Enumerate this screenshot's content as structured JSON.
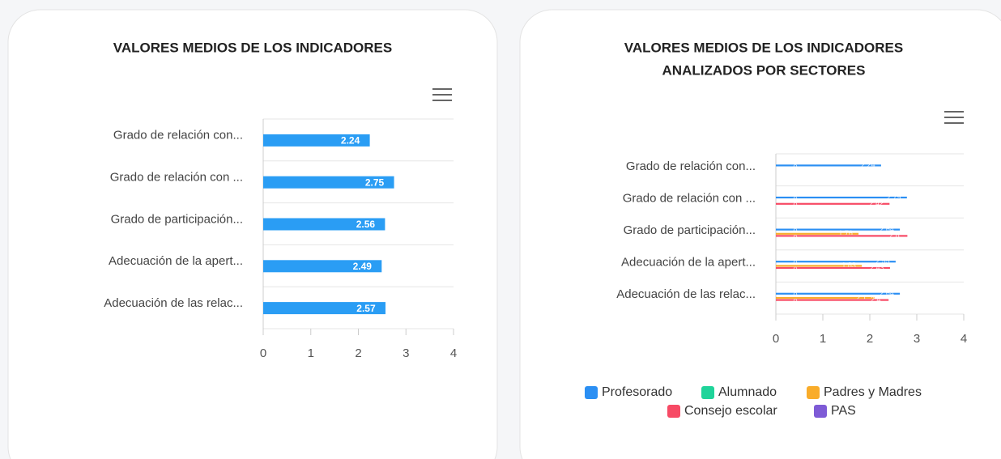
{
  "chart_data": [
    {
      "type": "bar",
      "orientation": "horizontal",
      "title": "VALORES MEDIOS DE LOS INDICADORES",
      "categories": [
        "Grado de relación con...",
        "Grado de relación con ...",
        "Grado de participación...",
        "Adecuación de la apert...",
        "Adecuación de las relac..."
      ],
      "values": [
        2.24,
        2.75,
        2.56,
        2.49,
        2.57
      ],
      "color": "#2a9df4",
      "xlim": [
        0,
        4
      ],
      "xticks": [
        0,
        1,
        2,
        3,
        4
      ]
    },
    {
      "type": "grouped_bar",
      "orientation": "horizontal",
      "title": [
        "VALORES MEDIOS DE LOS INDICADORES",
        "ANALIZADOS POR SECTORES"
      ],
      "categories": [
        "Grado de relación con...",
        "Grado de relación con ...",
        "Grado de participación...",
        "Adecuación de la apert...",
        "Adecuación de las relac..."
      ],
      "series": [
        {
          "name": "Profesorado",
          "color": "#2b8ff3",
          "values": [
            2.24,
            2.79,
            2.64,
            2.55,
            2.64
          ]
        },
        {
          "name": "Alumnado",
          "color": "#1fd49a",
          "values": [
            0,
            0,
            0,
            0,
            0
          ]
        },
        {
          "name": "Padres y Madres",
          "color": "#f9ac2a",
          "values": [
            0,
            0,
            1.76,
            1.83,
            2.1
          ]
        },
        {
          "name": "Consejo escolar",
          "color": "#f74a65",
          "values": [
            0,
            2.42,
            2.8,
            2.43,
            2.4
          ]
        },
        {
          "name": "PAS",
          "color": "#7e5bd6",
          "values": [
            0,
            0,
            0,
            0,
            0
          ]
        }
      ],
      "xlim": [
        0,
        4
      ],
      "xticks": [
        0,
        1,
        2,
        3,
        4
      ],
      "legend": "bottom"
    }
  ]
}
